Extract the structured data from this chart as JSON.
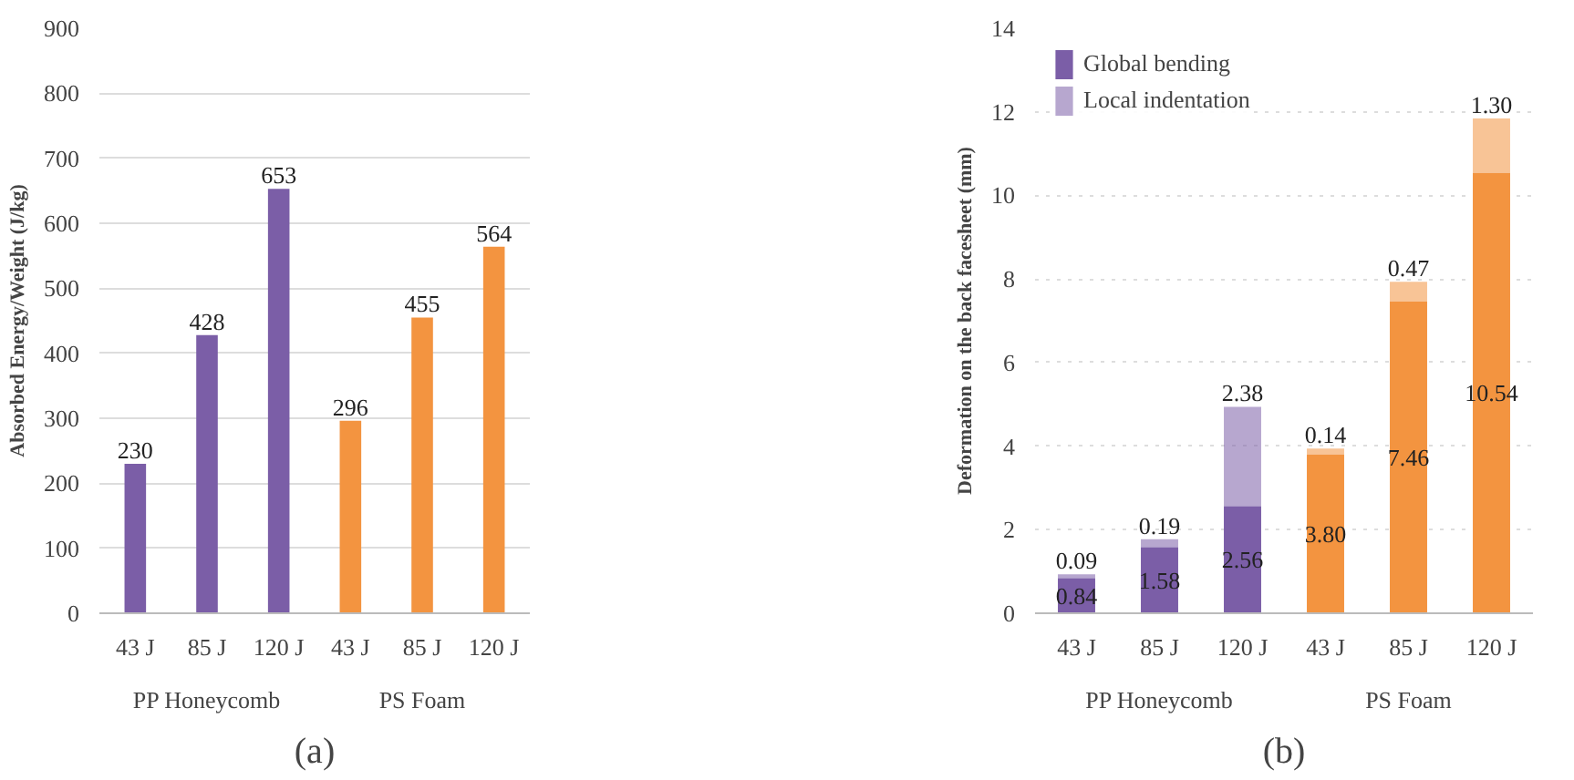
{
  "chart_data": [
    {
      "type": "bar",
      "subtitle": "(a)",
      "ylabel": "Absorbed Energy/Weight (J/kg)",
      "categories": [
        "43 J",
        "85 J",
        "120 J",
        "43 J",
        "85 J",
        "120 J"
      ],
      "values": [
        230,
        428,
        653,
        296,
        455,
        564
      ],
      "colors": [
        "#7b5ea7",
        "#7b5ea7",
        "#7b5ea7",
        "#f39440",
        "#f39440",
        "#f39440"
      ],
      "annotations": [
        "PP Honeycomb",
        "PS Foam"
      ],
      "ylim": [
        0,
        900
      ],
      "yticks": [
        0,
        100,
        200,
        300,
        400,
        500,
        600,
        700,
        800,
        900
      ],
      "grid": "y",
      "data_labels": true
    },
    {
      "type": "bar",
      "subtitle": "(b)",
      "ylabel": "Deformation on the back facesheet (mm)",
      "categories": [
        "43 J",
        "85 J",
        "120 J",
        "43 J",
        "85 J",
        "120 J"
      ],
      "stacked": true,
      "series": [
        {
          "name": "Global bending",
          "colors": [
            "#7b5ea7",
            "#7b5ea7",
            "#7b5ea7",
            "#f39440",
            "#f39440",
            "#f39440"
          ],
          "values": [
            0.84,
            1.58,
            2.56,
            3.8,
            7.46,
            10.54
          ],
          "value_labels": [
            "0.84",
            "1.58",
            "2.56",
            "3.80",
            "7.46",
            "10.54"
          ]
        },
        {
          "name": "Local indentation",
          "colors": [
            "#7b5ea7",
            "#7b5ea7",
            "#7b5ea7",
            "#f39440",
            "#f39440",
            "#f39440"
          ],
          "values": [
            0.09,
            0.19,
            2.38,
            0.14,
            0.47,
            1.3
          ],
          "value_labels": [
            "0.09",
            "0.19",
            "2.38",
            "0.14",
            "0.47",
            "1.30"
          ]
        }
      ],
      "annotations": [
        "PP Honeycomb",
        "PS Foam"
      ],
      "ylim": [
        0,
        14
      ],
      "yticks": [
        0,
        2,
        4,
        6,
        8,
        10,
        12,
        14
      ],
      "grid": "y",
      "legend": "top left"
    }
  ]
}
